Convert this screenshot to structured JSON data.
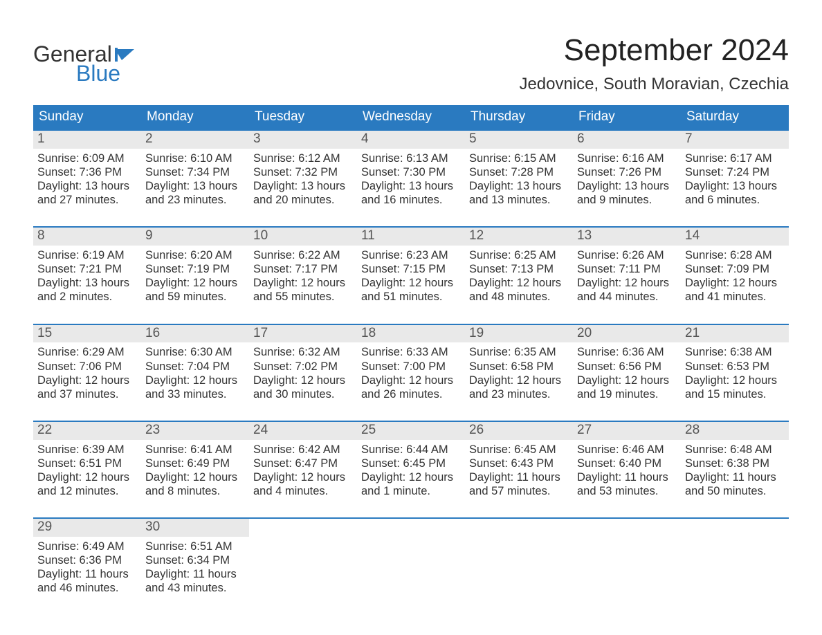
{
  "brand": {
    "word1": "General",
    "word2": "Blue",
    "flag_color": "#2a7ac0"
  },
  "header": {
    "month_title": "September 2024",
    "location": "Jedovnice, South Moravian, Czechia"
  },
  "styling": {
    "header_row_bg": "#2a7ac0",
    "header_row_fg": "#ffffff",
    "daynum_bg": "#e9e9e9",
    "daynum_fg": "#555555",
    "week_border_color": "#2a7ac0",
    "body_bg": "#ffffff",
    "text_color": "#333333",
    "month_title_fontsize": 44,
    "location_fontsize": 24,
    "dow_fontsize": 19,
    "body_fontsize": 16.5,
    "columns": 7,
    "column_widths_equal": true
  },
  "days_of_week": [
    "Sunday",
    "Monday",
    "Tuesday",
    "Wednesday",
    "Thursday",
    "Friday",
    "Saturday"
  ],
  "weeks": [
    [
      {
        "n": "1",
        "sunrise": "Sunrise: 6:09 AM",
        "sunset": "Sunset: 7:36 PM",
        "dl1": "Daylight: 13 hours",
        "dl2": "and 27 minutes."
      },
      {
        "n": "2",
        "sunrise": "Sunrise: 6:10 AM",
        "sunset": "Sunset: 7:34 PM",
        "dl1": "Daylight: 13 hours",
        "dl2": "and 23 minutes."
      },
      {
        "n": "3",
        "sunrise": "Sunrise: 6:12 AM",
        "sunset": "Sunset: 7:32 PM",
        "dl1": "Daylight: 13 hours",
        "dl2": "and 20 minutes."
      },
      {
        "n": "4",
        "sunrise": "Sunrise: 6:13 AM",
        "sunset": "Sunset: 7:30 PM",
        "dl1": "Daylight: 13 hours",
        "dl2": "and 16 minutes."
      },
      {
        "n": "5",
        "sunrise": "Sunrise: 6:15 AM",
        "sunset": "Sunset: 7:28 PM",
        "dl1": "Daylight: 13 hours",
        "dl2": "and 13 minutes."
      },
      {
        "n": "6",
        "sunrise": "Sunrise: 6:16 AM",
        "sunset": "Sunset: 7:26 PM",
        "dl1": "Daylight: 13 hours",
        "dl2": "and 9 minutes."
      },
      {
        "n": "7",
        "sunrise": "Sunrise: 6:17 AM",
        "sunset": "Sunset: 7:24 PM",
        "dl1": "Daylight: 13 hours",
        "dl2": "and 6 minutes."
      }
    ],
    [
      {
        "n": "8",
        "sunrise": "Sunrise: 6:19 AM",
        "sunset": "Sunset: 7:21 PM",
        "dl1": "Daylight: 13 hours",
        "dl2": "and 2 minutes."
      },
      {
        "n": "9",
        "sunrise": "Sunrise: 6:20 AM",
        "sunset": "Sunset: 7:19 PM",
        "dl1": "Daylight: 12 hours",
        "dl2": "and 59 minutes."
      },
      {
        "n": "10",
        "sunrise": "Sunrise: 6:22 AM",
        "sunset": "Sunset: 7:17 PM",
        "dl1": "Daylight: 12 hours",
        "dl2": "and 55 minutes."
      },
      {
        "n": "11",
        "sunrise": "Sunrise: 6:23 AM",
        "sunset": "Sunset: 7:15 PM",
        "dl1": "Daylight: 12 hours",
        "dl2": "and 51 minutes."
      },
      {
        "n": "12",
        "sunrise": "Sunrise: 6:25 AM",
        "sunset": "Sunset: 7:13 PM",
        "dl1": "Daylight: 12 hours",
        "dl2": "and 48 minutes."
      },
      {
        "n": "13",
        "sunrise": "Sunrise: 6:26 AM",
        "sunset": "Sunset: 7:11 PM",
        "dl1": "Daylight: 12 hours",
        "dl2": "and 44 minutes."
      },
      {
        "n": "14",
        "sunrise": "Sunrise: 6:28 AM",
        "sunset": "Sunset: 7:09 PM",
        "dl1": "Daylight: 12 hours",
        "dl2": "and 41 minutes."
      }
    ],
    [
      {
        "n": "15",
        "sunrise": "Sunrise: 6:29 AM",
        "sunset": "Sunset: 7:06 PM",
        "dl1": "Daylight: 12 hours",
        "dl2": "and 37 minutes."
      },
      {
        "n": "16",
        "sunrise": "Sunrise: 6:30 AM",
        "sunset": "Sunset: 7:04 PM",
        "dl1": "Daylight: 12 hours",
        "dl2": "and 33 minutes."
      },
      {
        "n": "17",
        "sunrise": "Sunrise: 6:32 AM",
        "sunset": "Sunset: 7:02 PM",
        "dl1": "Daylight: 12 hours",
        "dl2": "and 30 minutes."
      },
      {
        "n": "18",
        "sunrise": "Sunrise: 6:33 AM",
        "sunset": "Sunset: 7:00 PM",
        "dl1": "Daylight: 12 hours",
        "dl2": "and 26 minutes."
      },
      {
        "n": "19",
        "sunrise": "Sunrise: 6:35 AM",
        "sunset": "Sunset: 6:58 PM",
        "dl1": "Daylight: 12 hours",
        "dl2": "and 23 minutes."
      },
      {
        "n": "20",
        "sunrise": "Sunrise: 6:36 AM",
        "sunset": "Sunset: 6:56 PM",
        "dl1": "Daylight: 12 hours",
        "dl2": "and 19 minutes."
      },
      {
        "n": "21",
        "sunrise": "Sunrise: 6:38 AM",
        "sunset": "Sunset: 6:53 PM",
        "dl1": "Daylight: 12 hours",
        "dl2": "and 15 minutes."
      }
    ],
    [
      {
        "n": "22",
        "sunrise": "Sunrise: 6:39 AM",
        "sunset": "Sunset: 6:51 PM",
        "dl1": "Daylight: 12 hours",
        "dl2": "and 12 minutes."
      },
      {
        "n": "23",
        "sunrise": "Sunrise: 6:41 AM",
        "sunset": "Sunset: 6:49 PM",
        "dl1": "Daylight: 12 hours",
        "dl2": "and 8 minutes."
      },
      {
        "n": "24",
        "sunrise": "Sunrise: 6:42 AM",
        "sunset": "Sunset: 6:47 PM",
        "dl1": "Daylight: 12 hours",
        "dl2": "and 4 minutes."
      },
      {
        "n": "25",
        "sunrise": "Sunrise: 6:44 AM",
        "sunset": "Sunset: 6:45 PM",
        "dl1": "Daylight: 12 hours",
        "dl2": "and 1 minute."
      },
      {
        "n": "26",
        "sunrise": "Sunrise: 6:45 AM",
        "sunset": "Sunset: 6:43 PM",
        "dl1": "Daylight: 11 hours",
        "dl2": "and 57 minutes."
      },
      {
        "n": "27",
        "sunrise": "Sunrise: 6:46 AM",
        "sunset": "Sunset: 6:40 PM",
        "dl1": "Daylight: 11 hours",
        "dl2": "and 53 minutes."
      },
      {
        "n": "28",
        "sunrise": "Sunrise: 6:48 AM",
        "sunset": "Sunset: 6:38 PM",
        "dl1": "Daylight: 11 hours",
        "dl2": "and 50 minutes."
      }
    ],
    [
      {
        "n": "29",
        "sunrise": "Sunrise: 6:49 AM",
        "sunset": "Sunset: 6:36 PM",
        "dl1": "Daylight: 11 hours",
        "dl2": "and 46 minutes."
      },
      {
        "n": "30",
        "sunrise": "Sunrise: 6:51 AM",
        "sunset": "Sunset: 6:34 PM",
        "dl1": "Daylight: 11 hours",
        "dl2": "and 43 minutes."
      },
      null,
      null,
      null,
      null,
      null
    ]
  ]
}
